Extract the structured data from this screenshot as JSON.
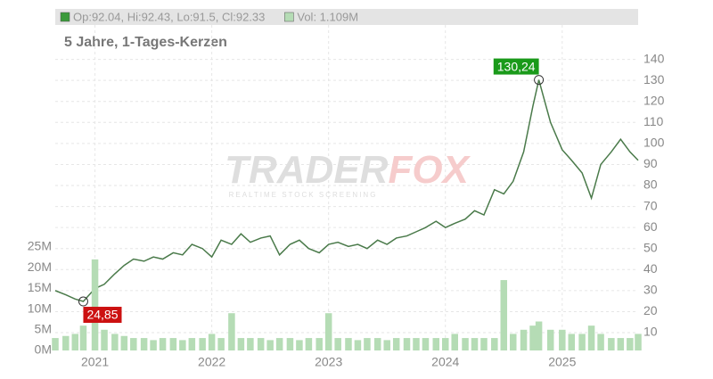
{
  "chart_data": {
    "type": "line",
    "header": [
      "Op:92.04, Hi:92.43, Lo:91.5, Cl:92.33",
      "Vol: 1.109M"
    ],
    "header_colors": [
      "#3a9a3a",
      "#b5dcb5"
    ],
    "subtitle": "5 Jahre, 1-Tages-Kerzen",
    "watermark": [
      "TRADER",
      "FOX"
    ],
    "watermark_tagline": "REALTIME STOCK SCREENING",
    "x": [
      2020.66,
      2020.75,
      2020.83,
      2020.9,
      2021.0,
      2021.08,
      2021.17,
      2021.25,
      2021.33,
      2021.42,
      2021.5,
      2021.58,
      2021.67,
      2021.75,
      2021.83,
      2021.92,
      2022.0,
      2022.08,
      2022.17,
      2022.25,
      2022.33,
      2022.42,
      2022.5,
      2022.58,
      2022.67,
      2022.75,
      2022.83,
      2022.92,
      2023.0,
      2023.08,
      2023.17,
      2023.25,
      2023.33,
      2023.42,
      2023.5,
      2023.58,
      2023.67,
      2023.75,
      2023.83,
      2023.92,
      2024.0,
      2024.08,
      2024.17,
      2024.25,
      2024.33,
      2024.42,
      2024.5,
      2024.58,
      2024.67,
      2024.75,
      2024.8,
      2024.9,
      2025.0,
      2025.08,
      2025.17,
      2025.25,
      2025.33,
      2025.42,
      2025.5,
      2025.58,
      2025.65
    ],
    "series": [
      {
        "name": "Kurs",
        "color": "#4a7a4a",
        "values": [
          30,
          28,
          26,
          24.85,
          31,
          33,
          38,
          42,
          45,
          44,
          46,
          45,
          48,
          47,
          52,
          50,
          46,
          54,
          52,
          57,
          53,
          55,
          56,
          47,
          52,
          54,
          50,
          48,
          52,
          53,
          51,
          52,
          50,
          54,
          52,
          55,
          56,
          58,
          60,
          63,
          60,
          62,
          64,
          68,
          66,
          78,
          76,
          82,
          96,
          118,
          130.24,
          110,
          97,
          92,
          86,
          74,
          90,
          96,
          102,
          96,
          92
        ]
      },
      {
        "name": "Vol",
        "color": "#b5dcb5",
        "axis": "y2",
        "values": [
          3,
          3.5,
          4,
          6,
          22,
          5,
          4,
          3.5,
          3,
          3,
          2.5,
          3,
          3,
          2.5,
          3,
          3,
          4,
          3,
          9,
          3,
          3,
          3,
          2.5,
          3,
          3,
          2.5,
          3,
          3,
          9,
          3,
          3,
          2.5,
          3,
          3,
          2.5,
          3,
          3,
          3,
          3,
          3,
          3,
          4,
          3,
          3,
          3,
          3,
          17,
          4,
          5,
          6,
          7,
          5,
          5,
          4,
          4,
          6,
          4,
          3,
          3,
          3,
          4
        ]
      }
    ],
    "annotations": [
      {
        "text": "130,24",
        "x": 2024.8,
        "y": 130.24,
        "color": "#1a9a1a"
      },
      {
        "text": "24,85",
        "x": 2020.9,
        "y": 24.85,
        "color": "#cc1111"
      }
    ],
    "xlim": [
      2020.66,
      2025.65
    ],
    "xticks": [
      2021,
      2022,
      2023,
      2024,
      2025
    ],
    "ylim": [
      0,
      164
    ],
    "yticks": [
      10,
      20,
      30,
      40,
      50,
      60,
      70,
      80,
      90,
      100,
      110,
      120,
      130,
      140
    ],
    "y2lim": [
      0,
      82.5
    ],
    "y2ticks": [
      {
        "value": 0,
        "label": "0M"
      },
      {
        "value": 5,
        "label": "5M"
      },
      {
        "value": 10,
        "label": "10M"
      },
      {
        "value": 15,
        "label": "15M"
      },
      {
        "value": 20,
        "label": "20M"
      },
      {
        "value": 25,
        "label": "25M"
      }
    ],
    "grid": true
  }
}
